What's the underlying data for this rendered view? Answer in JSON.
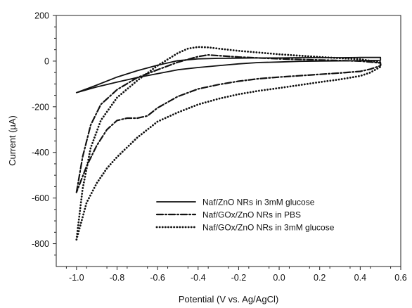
{
  "chart_data": {
    "type": "line",
    "title": "",
    "xlabel": "Potential (V vs. Ag/AgCl)",
    "ylabel": "Current (µA)",
    "xlim": [
      -1.1,
      0.6
    ],
    "ylim": [
      -900,
      200
    ],
    "x_ticks": [
      -1.0,
      -0.8,
      -0.6,
      -0.4,
      -0.2,
      0.0,
      0.2,
      0.4,
      0.6
    ],
    "x_tick_labels": [
      "-1.0",
      "-0.8",
      "-0.6",
      "-0.4",
      "-0.2",
      "0.0",
      "0.2",
      "0.4",
      "0.6"
    ],
    "y_ticks": [
      200,
      0,
      -200,
      -400,
      -600,
      -800
    ],
    "y_tick_labels": [
      "200",
      "0",
      "-200",
      "-400",
      "-600",
      "-800"
    ],
    "grid": false,
    "legend_position": "bottom-right",
    "series": [
      {
        "name": "Naf/ZnO NRs in 3mM glucose",
        "style": "solid",
        "color": "#111111",
        "points": [
          [
            -1.0,
            -138
          ],
          [
            -0.9,
            -105
          ],
          [
            -0.8,
            -70
          ],
          [
            -0.7,
            -42
          ],
          [
            -0.6,
            -18
          ],
          [
            -0.5,
            2
          ],
          [
            -0.4,
            10
          ],
          [
            -0.3,
            12
          ],
          [
            -0.2,
            13
          ],
          [
            -0.1,
            14
          ],
          [
            0.0,
            14
          ],
          [
            0.1,
            15
          ],
          [
            0.2,
            15
          ],
          [
            0.3,
            15
          ],
          [
            0.4,
            16
          ],
          [
            0.5,
            16
          ],
          [
            0.5,
            3
          ],
          [
            0.4,
            2
          ],
          [
            0.3,
            1
          ],
          [
            0.2,
            0
          ],
          [
            0.1,
            -1
          ],
          [
            0.0,
            -4
          ],
          [
            -0.1,
            -6
          ],
          [
            -0.2,
            -12
          ],
          [
            -0.3,
            -20
          ],
          [
            -0.4,
            -28
          ],
          [
            -0.5,
            -38
          ],
          [
            -0.6,
            -55
          ],
          [
            -0.7,
            -72
          ],
          [
            -0.8,
            -92
          ],
          [
            -0.9,
            -113
          ],
          [
            -1.0,
            -138
          ]
        ]
      },
      {
        "name": "Naf/GOx/ZnO NRs in PBS",
        "style": "dashdot",
        "color": "#111111",
        "points": [
          [
            -1.0,
            -575
          ],
          [
            -0.97,
            -420
          ],
          [
            -0.93,
            -280
          ],
          [
            -0.88,
            -190
          ],
          [
            -0.8,
            -125
          ],
          [
            -0.7,
            -72
          ],
          [
            -0.6,
            -38
          ],
          [
            -0.5,
            -5
          ],
          [
            -0.4,
            20
          ],
          [
            -0.35,
            27
          ],
          [
            -0.3,
            24
          ],
          [
            -0.2,
            18
          ],
          [
            0.0,
            10
          ],
          [
            0.2,
            5
          ],
          [
            0.4,
            0
          ],
          [
            0.5,
            -8
          ],
          [
            0.5,
            -20
          ],
          [
            0.45,
            -35
          ],
          [
            0.4,
            -45
          ],
          [
            0.3,
            -52
          ],
          [
            0.2,
            -58
          ],
          [
            0.1,
            -64
          ],
          [
            0.0,
            -70
          ],
          [
            -0.1,
            -77
          ],
          [
            -0.2,
            -88
          ],
          [
            -0.3,
            -103
          ],
          [
            -0.4,
            -122
          ],
          [
            -0.5,
            -155
          ],
          [
            -0.6,
            -205
          ],
          [
            -0.65,
            -240
          ],
          [
            -0.7,
            -250
          ],
          [
            -0.75,
            -250
          ],
          [
            -0.8,
            -260
          ],
          [
            -0.85,
            -300
          ],
          [
            -0.9,
            -370
          ],
          [
            -0.95,
            -460
          ],
          [
            -1.0,
            -575
          ]
        ]
      },
      {
        "name": "Naf/GOx/ZnO NRs in 3mM glucose",
        "style": "dotted",
        "color": "#111111",
        "points": [
          [
            -1.0,
            -782
          ],
          [
            -0.97,
            -560
          ],
          [
            -0.93,
            -380
          ],
          [
            -0.88,
            -260
          ],
          [
            -0.8,
            -160
          ],
          [
            -0.7,
            -85
          ],
          [
            -0.6,
            -20
          ],
          [
            -0.5,
            35
          ],
          [
            -0.45,
            55
          ],
          [
            -0.4,
            62
          ],
          [
            -0.35,
            60
          ],
          [
            -0.3,
            55
          ],
          [
            -0.2,
            45
          ],
          [
            0.0,
            30
          ],
          [
            0.2,
            18
          ],
          [
            0.4,
            8
          ],
          [
            0.5,
            -5
          ],
          [
            0.5,
            -25
          ],
          [
            0.45,
            -50
          ],
          [
            0.4,
            -65
          ],
          [
            0.3,
            -80
          ],
          [
            0.2,
            -92
          ],
          [
            0.1,
            -105
          ],
          [
            0.0,
            -118
          ],
          [
            -0.1,
            -130
          ],
          [
            -0.2,
            -145
          ],
          [
            -0.3,
            -165
          ],
          [
            -0.4,
            -190
          ],
          [
            -0.5,
            -225
          ],
          [
            -0.6,
            -265
          ],
          [
            -0.7,
            -335
          ],
          [
            -0.8,
            -420
          ],
          [
            -0.85,
            -470
          ],
          [
            -0.9,
            -535
          ],
          [
            -0.95,
            -620
          ],
          [
            -1.0,
            -782
          ]
        ]
      }
    ]
  }
}
